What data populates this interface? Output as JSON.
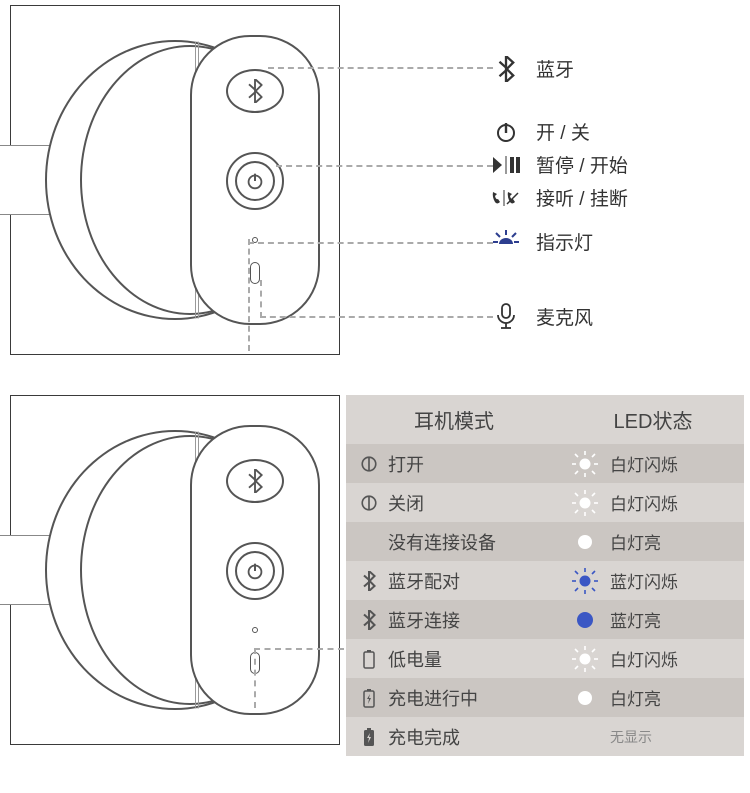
{
  "colors": {
    "stroke": "#555555",
    "stroke_light": "#999999",
    "dash": "#aaaaaa",
    "text": "#333333",
    "table_bg": "#d9d5d2",
    "table_alt": "#cbc6c2",
    "white": "#ffffff",
    "blue": "#3b57c4",
    "icon_grey": "#555555"
  },
  "legend": {
    "bluetooth": "蓝牙",
    "power": "开 / 关",
    "playpause": "暂停 / 开始",
    "call": "接听 / 挂断",
    "indicator": "指示灯",
    "mic": "麦克风"
  },
  "table": {
    "header_mode": "耳机模式",
    "header_led": "LED状态",
    "rows": [
      {
        "icon": "power",
        "mode": "打开",
        "led_kind": "white-blink",
        "led_text": "白灯闪烁"
      },
      {
        "icon": "power",
        "mode": "关闭",
        "led_kind": "white-blink",
        "led_text": "白灯闪烁"
      },
      {
        "icon": "",
        "mode": "没有连接设备",
        "led_kind": "white-on",
        "led_text": "白灯亮"
      },
      {
        "icon": "bt",
        "mode": "蓝牙配对",
        "led_kind": "blue-blink",
        "led_text": "蓝灯闪烁"
      },
      {
        "icon": "bt",
        "mode": "蓝牙连接",
        "led_kind": "blue-on",
        "led_text": "蓝灯亮"
      },
      {
        "icon": "batt-low",
        "mode": "低电量",
        "led_kind": "white-blink",
        "led_text": "白灯闪烁"
      },
      {
        "icon": "batt-chg",
        "mode": "充电进行中",
        "led_kind": "white-on",
        "led_text": "白灯亮"
      },
      {
        "icon": "batt-full",
        "mode": "充电完成",
        "led_kind": "none",
        "led_text": "无显示"
      }
    ]
  }
}
